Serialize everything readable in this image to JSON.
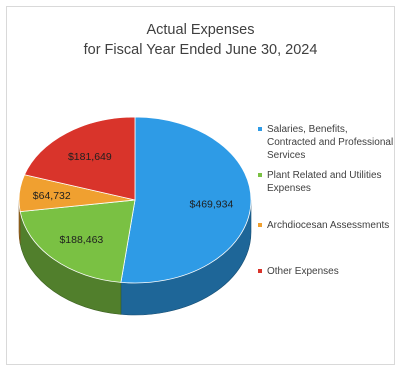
{
  "chart_data": {
    "type": "pie",
    "title": "Actual Expenses",
    "subtitle": "for Fiscal Year Ended June 30, 2024",
    "slices": [
      {
        "label": "Salaries, Benefits, Contracted and Professional Services",
        "value": 469934,
        "display": "$469,934",
        "color": "#2E9BE6"
      },
      {
        "label": "Plant Related and Utilities Expenses",
        "value": 188463,
        "display": "$188,463",
        "color": "#7AC143"
      },
      {
        "label": "Archdiocesan Assessments",
        "value": 64732,
        "display": "$64,732",
        "color": "#F0A030"
      },
      {
        "label": "Other Expenses",
        "value": 181649,
        "display": "$181,649",
        "color": "#D9342B"
      }
    ],
    "legend_position": "right",
    "three_d": true
  }
}
